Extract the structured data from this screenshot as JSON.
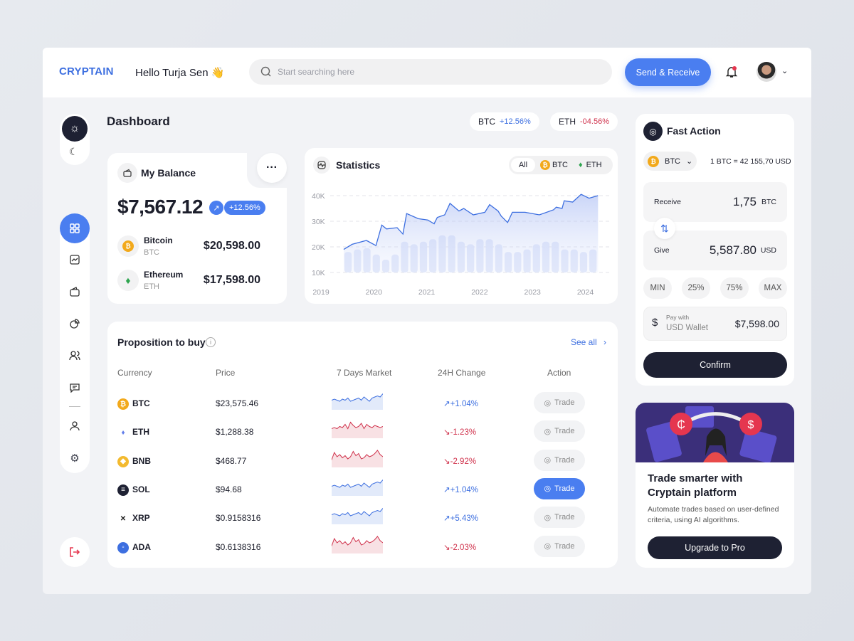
{
  "header": {
    "logo": "CRYPTAIN",
    "greeting": "Hello Turja Sen 👋",
    "search_placeholder": "Start searching here",
    "send_receive": "Send & Receive"
  },
  "page_title": "Dashboard",
  "tickers": [
    {
      "symbol": "BTC",
      "change": "+12.56%",
      "color": "#3d6fe0"
    },
    {
      "symbol": "ETH",
      "change": "-04.56%",
      "color": "#d0334d"
    }
  ],
  "balance": {
    "title": "My Balance",
    "amount": "$7,567.12",
    "change": "+12.56%",
    "assets": [
      {
        "name": "Bitcoin",
        "symbol": "BTC",
        "value": "$20,598.00"
      },
      {
        "name": "Ethereum",
        "symbol": "ETH",
        "value": "$17,598.00"
      }
    ]
  },
  "statistics": {
    "title": "Statistics",
    "filters": [
      "All",
      "BTC",
      "ETH"
    ],
    "active_filter": "All"
  },
  "chart_data": {
    "type": "line",
    "title": "Statistics",
    "grid": true,
    "ylim": [
      10,
      40
    ],
    "yticks": [
      "10K",
      "20K",
      "30K",
      "40K"
    ],
    "xticks": [
      "2019",
      "2020",
      "2021",
      "2022",
      "2023",
      "2024"
    ],
    "xlim": [
      2019,
      2024.25
    ],
    "line": [
      [
        2019.43,
        19
      ],
      [
        2019.59,
        21
      ],
      [
        2019.86,
        22.5
      ],
      [
        2020.04,
        20.5
      ],
      [
        2020.15,
        28.5
      ],
      [
        2020.24,
        27
      ],
      [
        2020.44,
        27.5
      ],
      [
        2020.55,
        25
      ],
      [
        2020.62,
        33
      ],
      [
        2020.84,
        31
      ],
      [
        2021.02,
        30.5
      ],
      [
        2021.14,
        29
      ],
      [
        2021.2,
        31.5
      ],
      [
        2021.34,
        32.5
      ],
      [
        2021.44,
        37
      ],
      [
        2021.61,
        34
      ],
      [
        2021.7,
        35
      ],
      [
        2021.88,
        32.5
      ],
      [
        2022.1,
        33.5
      ],
      [
        2022.19,
        36.5
      ],
      [
        2022.35,
        34
      ],
      [
        2022.41,
        32
      ],
      [
        2022.53,
        29.5
      ],
      [
        2022.62,
        33.5
      ],
      [
        2022.86,
        33.5
      ],
      [
        2023.13,
        32.5
      ],
      [
        2023.4,
        34.5
      ],
      [
        2023.45,
        35.5
      ],
      [
        2023.56,
        35
      ],
      [
        2023.6,
        38
      ],
      [
        2023.76,
        37.5
      ],
      [
        2023.92,
        40.5
      ],
      [
        2024.07,
        39
      ],
      [
        2024.24,
        40
      ]
    ],
    "bars": [
      18,
      19,
      19.5,
      17,
      15,
      17,
      22,
      21,
      22,
      23,
      24.5,
      24.5,
      22,
      21,
      23,
      23,
      21,
      18,
      18,
      19,
      21,
      22,
      22,
      19,
      19,
      18,
      19
    ]
  },
  "proposition": {
    "title": "Proposition to buy",
    "see_all": "See all",
    "columns": [
      "Currency",
      "Price",
      "7 Days Market",
      "24H Change",
      "Action"
    ],
    "rows": [
      {
        "symbol": "BTC",
        "price": "$23,575.46",
        "change": "+1.04%",
        "dir": "up",
        "action": "Trade",
        "active": false,
        "spark": [
          5,
          6,
          5,
          4,
          6,
          5,
          7,
          4,
          5,
          6,
          7,
          5,
          8,
          6,
          4,
          7,
          8,
          9,
          8,
          11
        ]
      },
      {
        "symbol": "ETH",
        "price": "$1,288.38",
        "change": "-1.23%",
        "dir": "down",
        "action": "Trade",
        "active": false,
        "spark": [
          5,
          6,
          5,
          7,
          6,
          9,
          5,
          11,
          8,
          6,
          7,
          10,
          5,
          9,
          7,
          6,
          8,
          7,
          6,
          7
        ]
      },
      {
        "symbol": "BNB",
        "price": "$468.77",
        "change": "-2.92%",
        "dir": "down",
        "action": "Trade",
        "active": false,
        "spark": [
          3,
          10,
          6,
          8,
          5,
          7,
          4,
          6,
          11,
          7,
          9,
          4,
          5,
          8,
          6,
          7,
          9,
          12,
          8,
          6
        ]
      },
      {
        "symbol": "SOL",
        "price": "$94.68",
        "change": "+1.04%",
        "dir": "up",
        "action": "Trade",
        "active": true,
        "spark": [
          5,
          6,
          5,
          4,
          6,
          5,
          7,
          4,
          5,
          6,
          7,
          5,
          8,
          6,
          4,
          7,
          8,
          9,
          8,
          11
        ]
      },
      {
        "symbol": "XRP",
        "price": "$0.9158316",
        "change": "+5.43%",
        "dir": "up",
        "action": "Trade",
        "active": false,
        "spark": [
          5,
          6,
          5,
          4,
          6,
          5,
          7,
          4,
          5,
          6,
          7,
          5,
          8,
          6,
          4,
          7,
          8,
          9,
          8,
          11
        ]
      },
      {
        "symbol": "ADA",
        "price": "$0.6138316",
        "change": "-2.03%",
        "dir": "down",
        "action": "Trade",
        "active": false,
        "spark": [
          3,
          10,
          6,
          8,
          5,
          7,
          4,
          6,
          11,
          7,
          9,
          4,
          5,
          8,
          6,
          7,
          9,
          12,
          8,
          6
        ]
      }
    ]
  },
  "fast_action": {
    "title": "Fast Action",
    "coin": "BTC",
    "rate": "1 BTC = 42 155,70 USD",
    "receive_label": "Receive",
    "receive_value": "1,75",
    "receive_unit": "BTC",
    "give_label": "Give",
    "give_value": "5,587.80",
    "give_unit": "USD",
    "presets": [
      "MIN",
      "25%",
      "75%",
      "MAX"
    ],
    "pay_with_label": "Pay with",
    "pay_with_wallet": "USD Wallet",
    "pay_with_amount": "$7,598.00",
    "confirm": "Confirm"
  },
  "promo": {
    "title": "Trade smarter with Cryptain platform",
    "text": "Automate trades based on user-defined criteria, using AI algorithms.",
    "button": "Upgrade to Pro"
  },
  "colors": {
    "accent": "#4a7ef0",
    "dark": "#1e2133",
    "up": "#3d6fe0",
    "down": "#d0334d"
  }
}
